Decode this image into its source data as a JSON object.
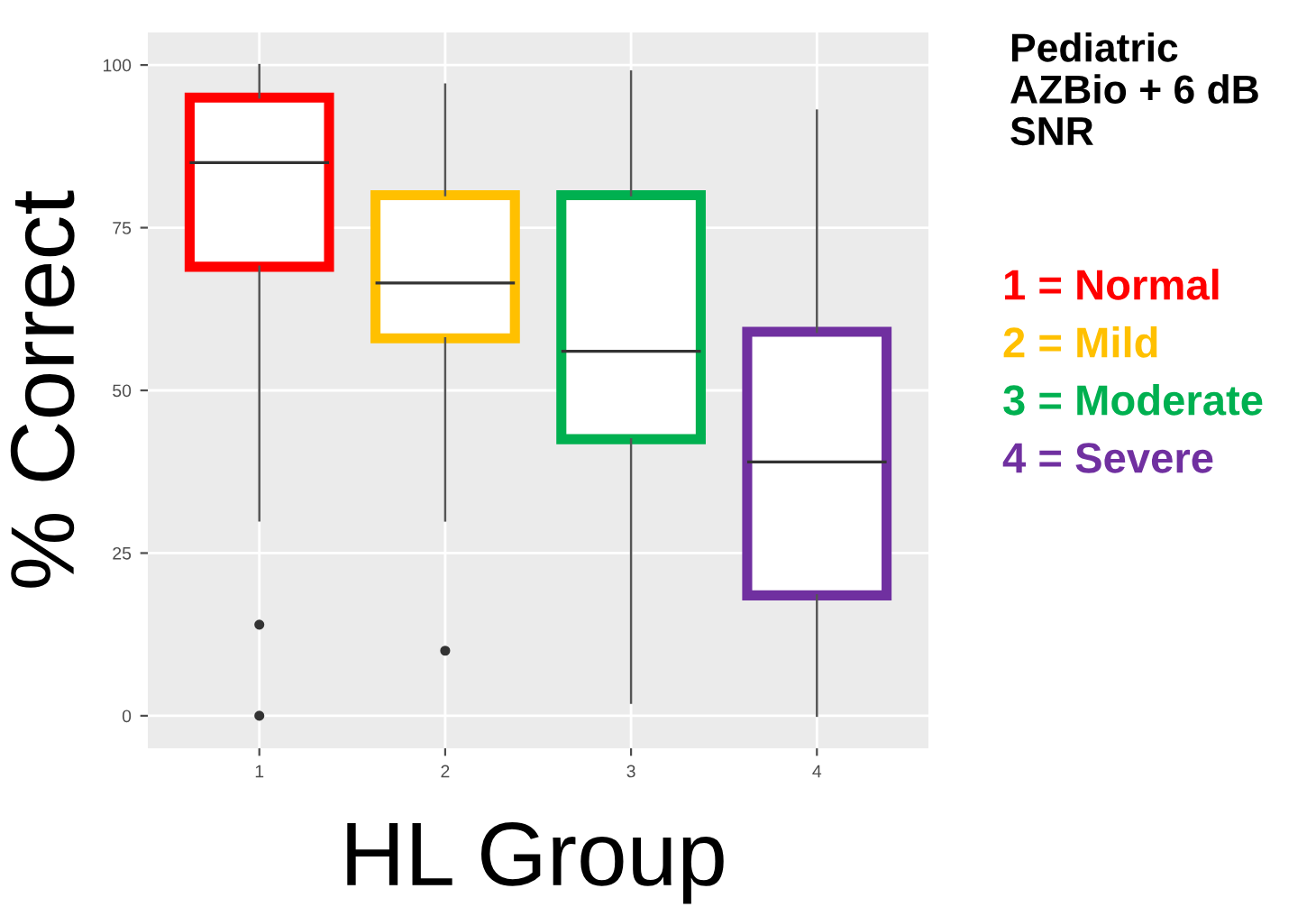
{
  "chart_data": {
    "type": "box",
    "title": "Pediatric\nAZBio + 6 dB\nSNR",
    "xlabel": "HL Group",
    "ylabel": "% Correct",
    "categories": [
      "1",
      "2",
      "3",
      "4"
    ],
    "colors": [
      "#ff0000",
      "#ffc000",
      "#00b050",
      "#7030a0"
    ],
    "boxes": [
      {
        "low": 30,
        "q1": 69,
        "median": 85,
        "q3": 95,
        "high": 100,
        "outliers": [
          14,
          0
        ]
      },
      {
        "low": 30,
        "q1": 58,
        "median": 66.5,
        "q3": 80,
        "high": 97,
        "outliers": [
          10
        ]
      },
      {
        "low": 2,
        "q1": 42.5,
        "median": 56,
        "q3": 80,
        "high": 99
      },
      {
        "low": 0,
        "q1": 18.5,
        "median": 39,
        "q3": 59,
        "high": 93
      }
    ],
    "ylim": [
      -5,
      105
    ],
    "yticks": [
      0,
      25,
      50,
      75,
      100
    ],
    "grid": true,
    "annotations": [
      "1 = Normal",
      "2 = Mild",
      "3 = Moderate",
      "4 = Severe"
    ]
  }
}
